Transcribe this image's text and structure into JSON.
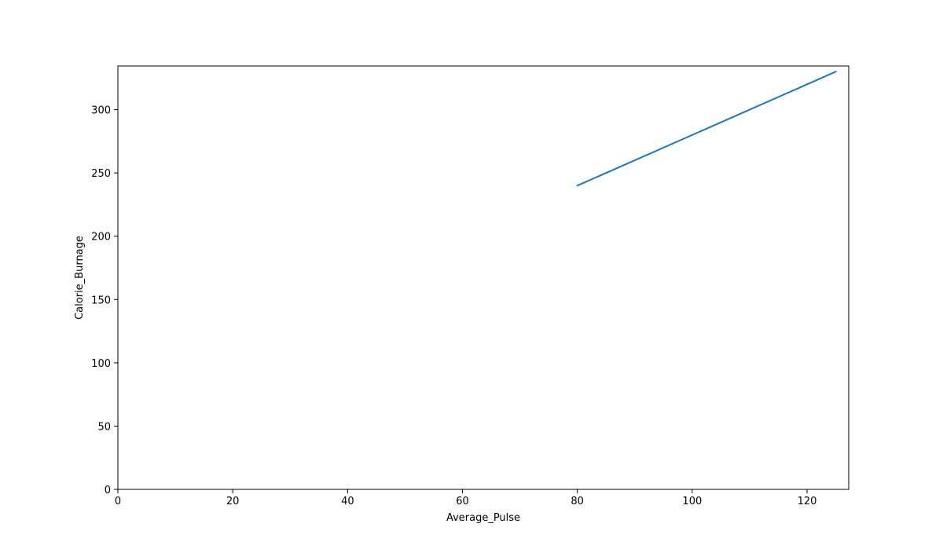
{
  "chart_data": {
    "type": "line",
    "title": "",
    "xlabel": "Average_Pulse",
    "ylabel": "Calorie_Burnage",
    "xlim": [
      0,
      127.25
    ],
    "ylim": [
      0,
      334.5
    ],
    "xticks": [
      0,
      20,
      40,
      60,
      80,
      100,
      120
    ],
    "yticks": [
      0,
      50,
      100,
      150,
      200,
      250,
      300
    ],
    "xtick_labels": [
      "0",
      "20",
      "40",
      "60",
      "80",
      "100",
      "120"
    ],
    "ytick_labels": [
      "0",
      "50",
      "100",
      "150",
      "200",
      "250",
      "300"
    ],
    "grid": false,
    "series": [
      {
        "x": [
          80,
          125
        ],
        "y": [
          240,
          330
        ],
        "color": "#1f77b4"
      }
    ]
  }
}
